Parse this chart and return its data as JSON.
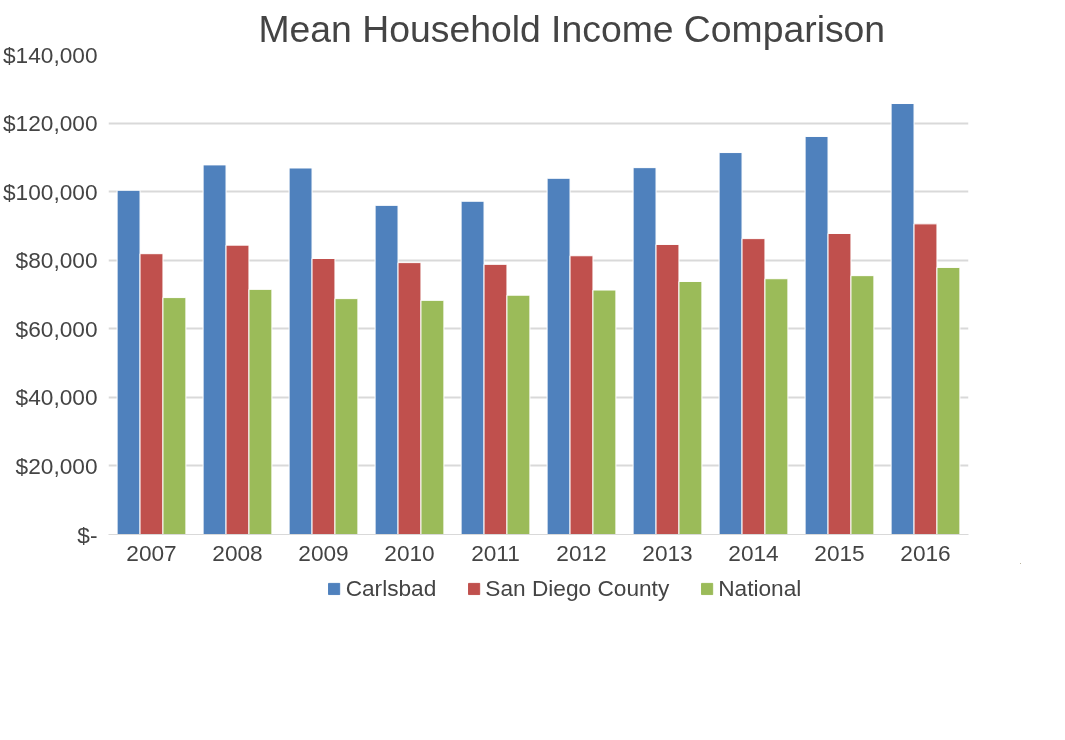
{
  "chart_data": {
    "type": "bar",
    "title": "Mean Household Income Comparison",
    "categories": [
      "2007",
      "2008",
      "2009",
      "2010",
      "2011",
      "2012",
      "2013",
      "2014",
      "2015",
      "2016"
    ],
    "series": [
      {
        "name": "Carlsbad",
        "color": "#4f81bd",
        "values": [
          100400,
          107800,
          106900,
          96000,
          97200,
          103900,
          107000,
          111400,
          116100,
          125700
        ]
      },
      {
        "name": "San Diego County",
        "color": "#c0504d",
        "values": [
          81900,
          84400,
          80500,
          79300,
          78800,
          81300,
          84600,
          86300,
          87800,
          90600
        ]
      },
      {
        "name": "National",
        "color": "#9bbb59",
        "values": [
          69100,
          71500,
          68800,
          68300,
          69800,
          71300,
          73800,
          74600,
          75500,
          77900
        ]
      }
    ],
    "ylim": [
      0,
      140000
    ],
    "yticks": [
      {
        "value": 0,
        "label": "$-"
      },
      {
        "value": 20000,
        "label": "$20,000"
      },
      {
        "value": 40000,
        "label": "$40,000"
      },
      {
        "value": 60000,
        "label": "$60,000"
      },
      {
        "value": 80000,
        "label": "$80,000"
      },
      {
        "value": 100000,
        "label": "$100,000"
      },
      {
        "value": 120000,
        "label": "$120,000"
      },
      {
        "value": 140000,
        "label": "$140,000"
      }
    ],
    "grid": "y",
    "legend": "bottom"
  }
}
